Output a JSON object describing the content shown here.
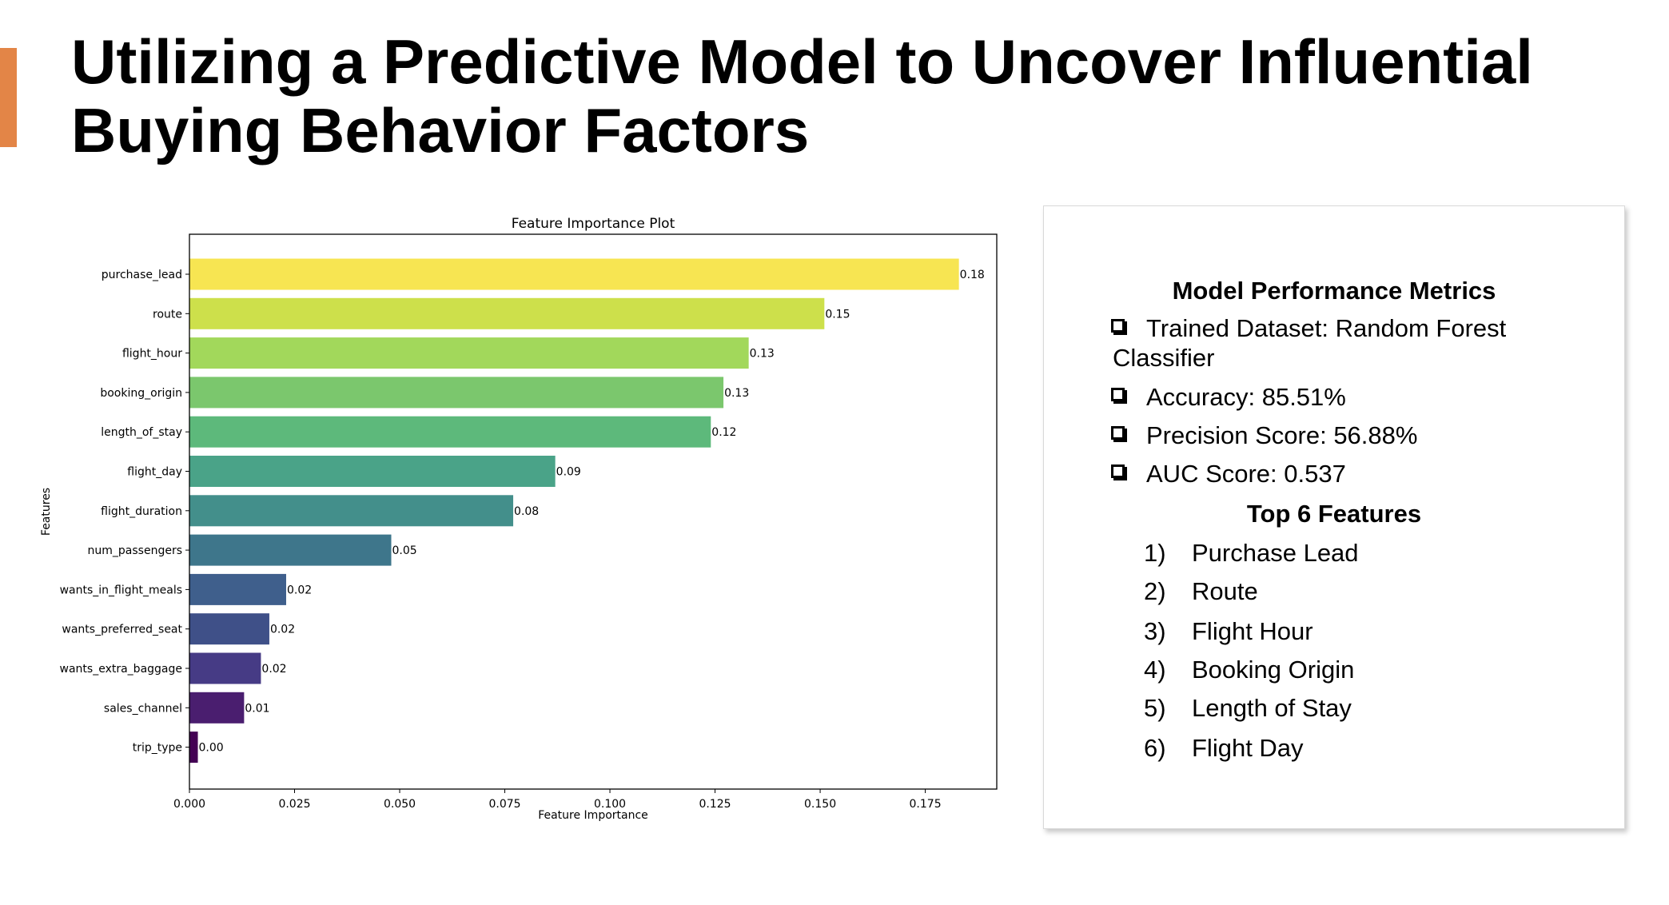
{
  "slide": {
    "title_line1": "Utilizing a Predictive Model to Uncover Influential",
    "title_line2": "Buying Behavior Factors",
    "accent_color": "#e38547"
  },
  "chart_data": {
    "type": "bar",
    "orientation": "horizontal",
    "title": "Feature Importance Plot",
    "xlabel": "Feature Importance",
    "ylabel": "Features",
    "categories": [
      "purchase_lead",
      "route",
      "flight_hour",
      "booking_origin",
      "length_of_stay",
      "flight_day",
      "flight_duration",
      "num_passengers",
      "wants_in_flight_meals",
      "wants_preferred_seat",
      "wants_extra_baggage",
      "sales_channel",
      "trip_type"
    ],
    "values": [
      0.183,
      0.151,
      0.133,
      0.127,
      0.124,
      0.087,
      0.077,
      0.048,
      0.023,
      0.019,
      0.017,
      0.013,
      0.002
    ],
    "data_labels": [
      "0.18",
      "0.15",
      "0.13",
      "0.13",
      "0.12",
      "0.09",
      "0.08",
      "0.05",
      "0.02",
      "0.02",
      "0.02",
      "0.01",
      "0.00"
    ],
    "colors": [
      "#f7e552",
      "#cde04b",
      "#a2d85b",
      "#7bc76d",
      "#5db97b",
      "#4aa388",
      "#438f8b",
      "#3e768b",
      "#3f5f8c",
      "#3f5088",
      "#463b85",
      "#4a1e6f",
      "#440154"
    ],
    "xlim": [
      0,
      0.192
    ],
    "xticks": [
      0.0,
      0.025,
      0.05,
      0.075,
      0.1,
      0.125,
      0.15,
      0.175
    ],
    "xtick_labels": [
      "0.000",
      "0.025",
      "0.050",
      "0.075",
      "0.100",
      "0.125",
      "0.150",
      "0.175"
    ],
    "grid": false,
    "legend": "none"
  },
  "metrics": {
    "heading": "Model Performance Metrics",
    "items": [
      "Trained Dataset: Random Forest Classifier",
      "Accuracy: 85.51%",
      "Precision Score: 56.88%",
      "AUC Score: 0.537"
    ],
    "features_heading": "Top 6 Features",
    "features": [
      {
        "num": "1)",
        "label": "Purchase Lead"
      },
      {
        "num": "2)",
        "label": "Route"
      },
      {
        "num": "3)",
        "label": "Flight Hour"
      },
      {
        "num": "4)",
        "label": "Booking Origin"
      },
      {
        "num": "5)",
        "label": "Length of Stay"
      },
      {
        "num": "6)",
        "label": "Flight Day"
      }
    ]
  }
}
